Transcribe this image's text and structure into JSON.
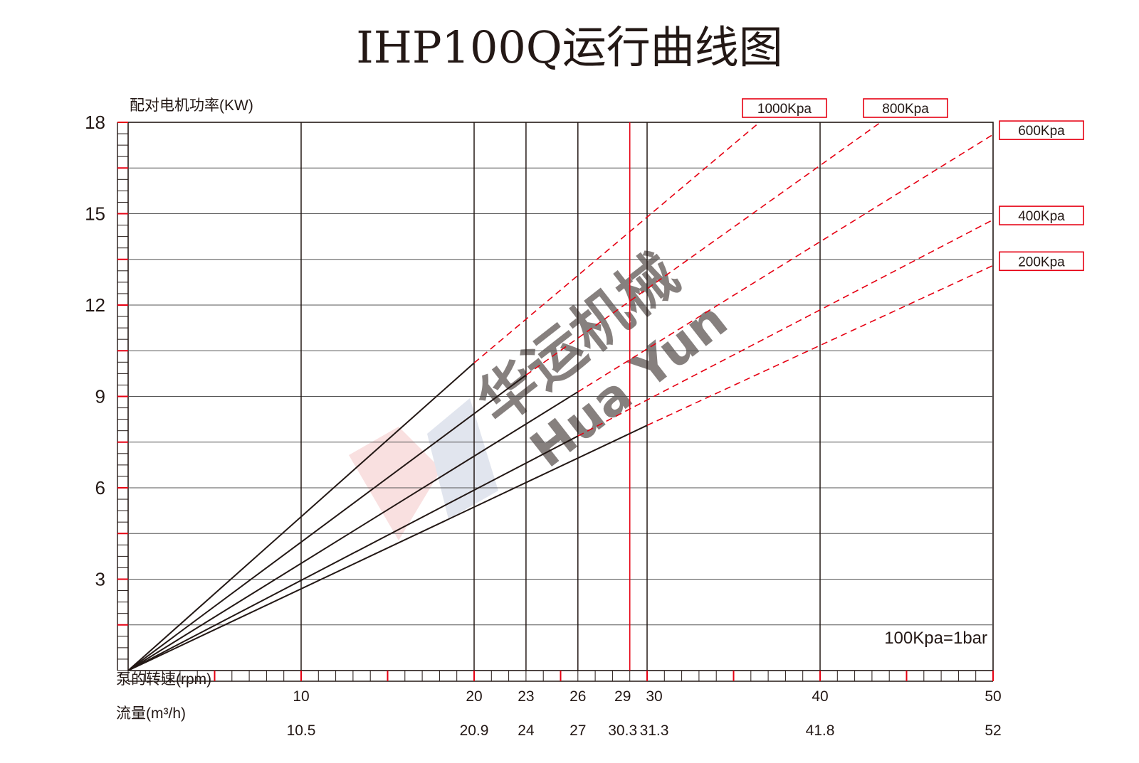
{
  "title": "IHP100Q运行曲线图",
  "y_axis_label": "配对电机功率(KW)",
  "x_axis_label": "泵的转速(rpm)",
  "flow_label_text": "流量(m³/h)",
  "note": "100Kpa=1bar",
  "watermark": {
    "cn": "华运机械",
    "en": "Hua Yun"
  },
  "colors": {
    "line": "#231815",
    "grid": "#231815",
    "accent": "#e60012",
    "watermark": "#c9cfe0"
  },
  "chart_data": {
    "type": "line",
    "title": "IHP100Q运行曲线图",
    "xlabel": "泵的转速(rpm)",
    "ylabel": "配对电机功率(KW)",
    "xlim": [
      0,
      50
    ],
    "ylim": [
      0,
      18
    ],
    "y_ticks": [
      3,
      6,
      9,
      12,
      15,
      18
    ],
    "x_ticks": [
      {
        "rpm": "10",
        "flow": "10.5"
      },
      {
        "rpm": "20",
        "flow": "20.9"
      },
      {
        "rpm": "23",
        "flow": "24"
      },
      {
        "rpm": "26",
        "flow": "27"
      },
      {
        "rpm": "29",
        "flow": "30.3"
      },
      {
        "rpm": "30",
        "flow": "31.3"
      },
      {
        "rpm": "40",
        "flow": "41.8"
      },
      {
        "rpm": "50",
        "flow": "52"
      }
    ],
    "grid_vertical": [
      10,
      20,
      23,
      26,
      30,
      40
    ],
    "highlight_vertical": 29,
    "grid": true,
    "legend_position": "top-right",
    "series": [
      {
        "name": "1000Kpa",
        "solid_to": [
          20,
          10.1
        ],
        "dashed_to": [
          36.5,
          18
        ]
      },
      {
        "name": "800Kpa",
        "solid_to": [
          23,
          9.7
        ],
        "dashed_to": [
          43.5,
          18
        ]
      },
      {
        "name": "600Kpa",
        "solid_to": [
          26,
          9.15
        ],
        "dashed_to": [
          50,
          17.6
        ]
      },
      {
        "name": "400Kpa",
        "solid_to": [
          26,
          7.7
        ],
        "dashed_to": [
          50,
          14.8
        ]
      },
      {
        "name": "200Kpa",
        "solid_to": [
          30,
          8.05
        ],
        "dashed_to": [
          50,
          13.3
        ]
      }
    ]
  }
}
